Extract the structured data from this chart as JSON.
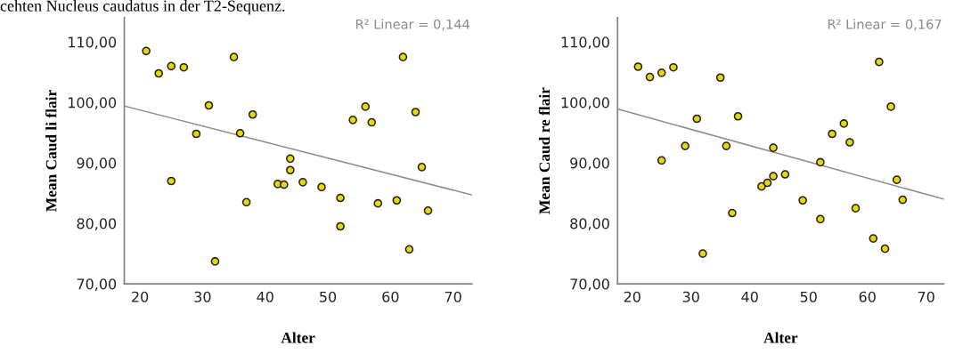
{
  "chart_data": [
    {
      "type": "scatter",
      "xlabel": "Alter",
      "ylabel": "Mean Caud li flair",
      "annotations": [
        "R² Linear = 0,144",
        "cehten Nucleus caudatus in der T2-Sequenz."
      ],
      "xlim": [
        17.5,
        73
      ],
      "xticks": [
        20,
        30,
        40,
        50,
        60,
        70
      ],
      "ylim": [
        70,
        114
      ],
      "yticks": [
        {
          "value": 70,
          "label": "70,00"
        },
        {
          "value": 80,
          "label": "80,00"
        },
        {
          "value": 90,
          "label": "90,00"
        },
        {
          "value": 100,
          "label": "100,00"
        },
        {
          "value": 110,
          "label": "110,00"
        }
      ],
      "grid": false,
      "series": [
        {
          "marker": "circle",
          "color": "#e8d800",
          "x": [
            21,
            23,
            25,
            27,
            35,
            31,
            38,
            29,
            36,
            25,
            37,
            32,
            44,
            44,
            42,
            43,
            46,
            49,
            62,
            56,
            54,
            57,
            64,
            65,
            52,
            52,
            58,
            61,
            66,
            63
          ],
          "values": [
            108.5,
            104.8,
            106.0,
            105.8,
            107.5,
            99.5,
            98.0,
            94.8,
            94.9,
            87.0,
            83.5,
            73.7,
            90.7,
            88.8,
            86.5,
            86.4,
            86.8,
            86.0,
            107.5,
            99.3,
            97.1,
            96.7,
            98.4,
            89.3,
            84.2,
            79.5,
            83.3,
            83.8,
            82.1,
            75.7
          ]
        },
        {
          "type": "line",
          "color": "#8c8c8c",
          "x": [
            17.5,
            73
          ],
          "values": [
            99.4,
            84.7
          ]
        }
      ]
    },
    {
      "type": "scatter",
      "xlabel": "Alter",
      "ylabel": "Mean Caud re flair",
      "annotations": [
        "R² Linear = 0,167"
      ],
      "xlim": [
        17.5,
        73
      ],
      "xticks": [
        20,
        30,
        40,
        50,
        60,
        70
      ],
      "ylim": [
        70,
        114
      ],
      "yticks": [
        {
          "value": 70,
          "label": "70,00"
        },
        {
          "value": 80,
          "label": "80,00"
        },
        {
          "value": 90,
          "label": "90,00"
        },
        {
          "value": 100,
          "label": "100,00"
        },
        {
          "value": 110,
          "label": "110,00"
        }
      ],
      "grid": false,
      "series": [
        {
          "marker": "circle",
          "color": "#e8d800",
          "x": [
            21,
            23,
            25,
            27,
            35,
            31,
            38,
            29,
            36,
            25,
            37,
            32,
            44,
            42,
            43,
            44,
            46,
            49,
            62,
            64,
            56,
            54,
            57,
            52,
            65,
            66,
            58,
            52,
            61,
            63
          ],
          "values": [
            105.9,
            104.2,
            104.9,
            105.8,
            104.1,
            97.3,
            97.7,
            92.8,
            92.8,
            90.4,
            81.7,
            75.0,
            92.5,
            86.1,
            86.7,
            87.8,
            88.1,
            83.8,
            106.7,
            99.3,
            96.5,
            94.8,
            93.4,
            90.1,
            87.2,
            83.9,
            82.5,
            80.7,
            77.5,
            75.8
          ]
        },
        {
          "type": "line",
          "color": "#8c8c8c",
          "x": [
            17.5,
            73
          ],
          "values": [
            98.9,
            84.0
          ]
        }
      ]
    }
  ]
}
